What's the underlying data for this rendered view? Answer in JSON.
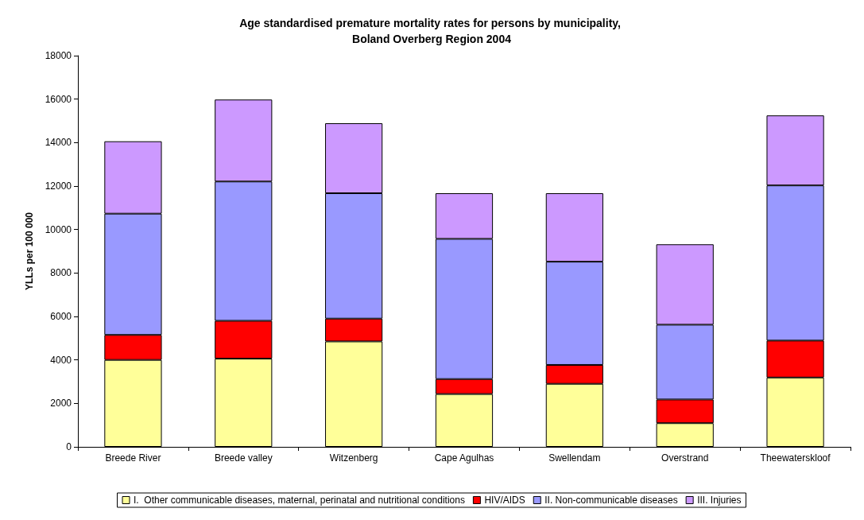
{
  "chart_data": {
    "type": "bar",
    "stacked": true,
    "title": "Age standardised premature mortality rates for persons by municipality, Boland Overberg Region 2004",
    "ylabel": "YLLs per 100 000",
    "categories": [
      "Breede River",
      "Breede valley",
      "Witzenberg",
      "Cape Agulhas",
      "Swellendam",
      "Overstrand",
      "Theewaterskloof"
    ],
    "series": [
      {
        "name": "I.  Other communicable diseases, maternal, perinatal and nutritional conditions",
        "color": "#ffff99",
        "values": [
          4000,
          4060,
          4850,
          2430,
          2900,
          1090,
          3190
        ]
      },
      {
        "name": "HIV/AIDS",
        "color": "#ff0000",
        "values": [
          1150,
          1740,
          1050,
          690,
          870,
          1090,
          1700
        ]
      },
      {
        "name": "II. Non-communicable diseases",
        "color": "#9999ff",
        "values": [
          5580,
          6410,
          5770,
          6450,
          4750,
          3440,
          7140
        ]
      },
      {
        "name": "III. Injuries",
        "color": "#cc99ff",
        "values": [
          3330,
          3770,
          3220,
          2100,
          3150,
          3700,
          3220
        ]
      }
    ],
    "ylim": [
      0,
      18000
    ],
    "yticks": [
      0,
      2000,
      4000,
      6000,
      8000,
      10000,
      12000,
      14000,
      16000,
      18000
    ],
    "grid": false,
    "legend": "bottom"
  }
}
